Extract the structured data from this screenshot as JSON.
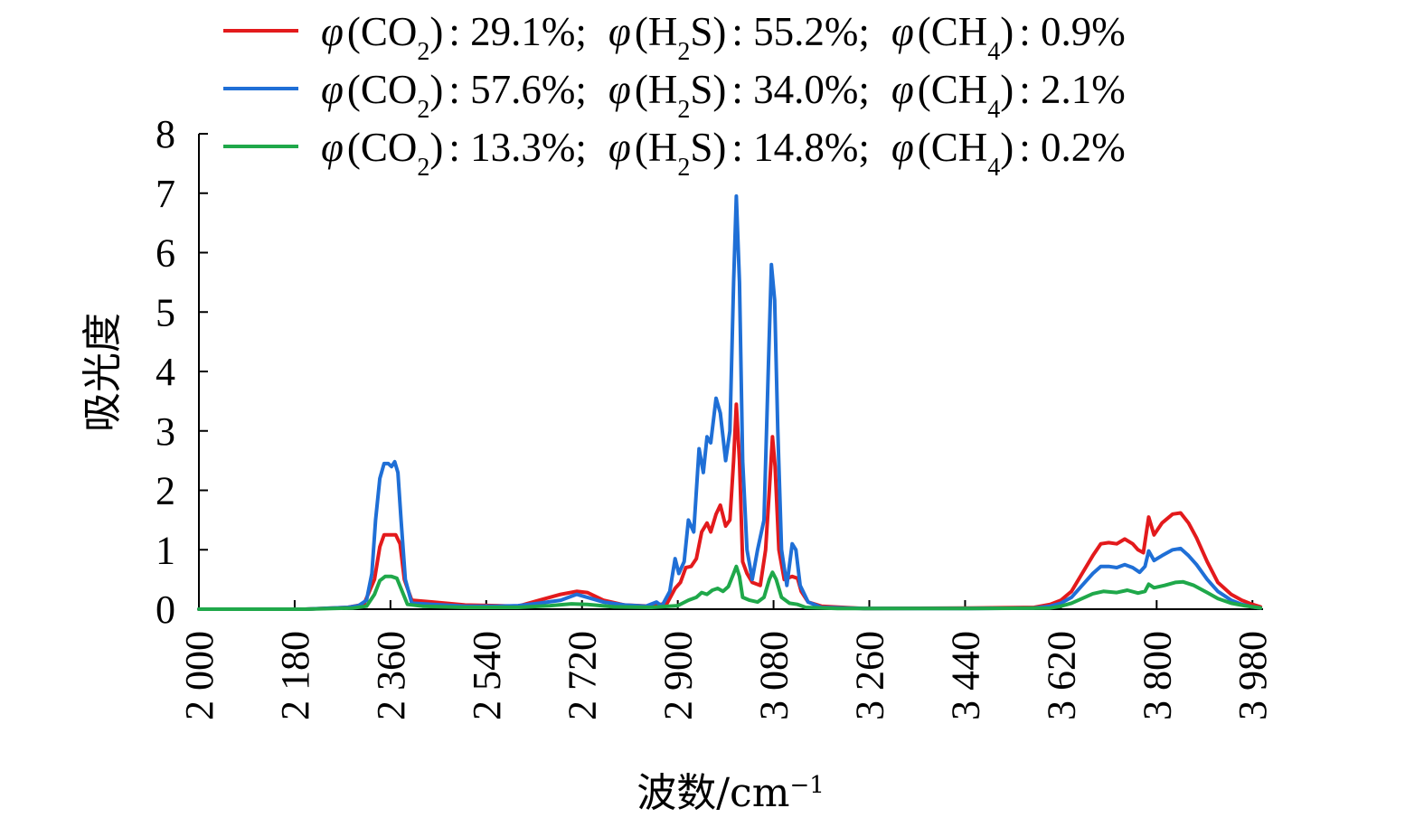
{
  "chart_data": {
    "type": "line",
    "title": "",
    "xlabel": "波数/cm",
    "xlabel_sup": "−1",
    "ylabel": "吸光度",
    "xlim": [
      2000,
      4000
    ],
    "ylim": [
      0,
      8
    ],
    "x_ticks": [
      2000,
      2180,
      2360,
      2540,
      2720,
      2900,
      3080,
      3260,
      3440,
      3620,
      3800,
      3980
    ],
    "x_tick_labels": [
      "2 000",
      "2 180",
      "2 360",
      "2 540",
      "2 720",
      "2 900",
      "3 080",
      "3 260",
      "3 440",
      "3 620",
      "3 800",
      "3 980"
    ],
    "y_ticks": [
      0,
      1,
      2,
      3,
      4,
      5,
      6,
      7,
      8
    ],
    "y_tick_labels": [
      "0",
      "1",
      "2",
      "3",
      "4",
      "5",
      "6",
      "7",
      "8"
    ],
    "grid": false,
    "legend_position": "top-right",
    "series": [
      {
        "name": "φ(CO2): 29.1%; φ(H2S): 55.2%; φ(CH4): 0.9%",
        "legend": {
          "sym1": "φ",
          "gas1": "CO",
          "sub1": "2",
          "val1": ": 29.1%;",
          "sym2": "φ",
          "gas2a": "H",
          "sub2": "2",
          "gas2b": "S",
          "val2": ": 55.2%;",
          "sym3": "φ",
          "gas3": "CH",
          "sub3": "4",
          "val3": ": 0.9%"
        },
        "color": "#e31a1c",
        "points": [
          [
            2000,
            0
          ],
          [
            2200,
            0
          ],
          [
            2280,
            0.03
          ],
          [
            2310,
            0.08
          ],
          [
            2330,
            0.5
          ],
          [
            2340,
            1.05
          ],
          [
            2348,
            1.25
          ],
          [
            2360,
            1.25
          ],
          [
            2370,
            1.25
          ],
          [
            2378,
            1.1
          ],
          [
            2386,
            0.5
          ],
          [
            2400,
            0.15
          ],
          [
            2440,
            0.12
          ],
          [
            2500,
            0.07
          ],
          [
            2560,
            0.06
          ],
          [
            2600,
            0.05
          ],
          [
            2640,
            0.15
          ],
          [
            2680,
            0.25
          ],
          [
            2710,
            0.3
          ],
          [
            2730,
            0.28
          ],
          [
            2760,
            0.15
          ],
          [
            2800,
            0.07
          ],
          [
            2850,
            0.05
          ],
          [
            2880,
            0.1
          ],
          [
            2895,
            0.35
          ],
          [
            2905,
            0.45
          ],
          [
            2915,
            0.7
          ],
          [
            2925,
            0.72
          ],
          [
            2935,
            0.85
          ],
          [
            2945,
            1.3
          ],
          [
            2955,
            1.45
          ],
          [
            2962,
            1.3
          ],
          [
            2972,
            1.6
          ],
          [
            2980,
            1.75
          ],
          [
            2990,
            1.4
          ],
          [
            2998,
            1.5
          ],
          [
            3005,
            2.5
          ],
          [
            3010,
            3.45
          ],
          [
            3016,
            2.5
          ],
          [
            3022,
            0.8
          ],
          [
            3030,
            0.6
          ],
          [
            3040,
            0.45
          ],
          [
            3055,
            0.4
          ],
          [
            3065,
            1.0
          ],
          [
            3072,
            2.0
          ],
          [
            3078,
            2.9
          ],
          [
            3083,
            2.4
          ],
          [
            3090,
            1.0
          ],
          [
            3100,
            0.5
          ],
          [
            3115,
            0.55
          ],
          [
            3125,
            0.52
          ],
          [
            3132,
            0.3
          ],
          [
            3145,
            0.12
          ],
          [
            3170,
            0.05
          ],
          [
            3250,
            0.01
          ],
          [
            3450,
            0.02
          ],
          [
            3570,
            0.03
          ],
          [
            3600,
            0.08
          ],
          [
            3620,
            0.15
          ],
          [
            3640,
            0.3
          ],
          [
            3660,
            0.6
          ],
          [
            3680,
            0.9
          ],
          [
            3695,
            1.1
          ],
          [
            3710,
            1.12
          ],
          [
            3725,
            1.1
          ],
          [
            3740,
            1.18
          ],
          [
            3755,
            1.1
          ],
          [
            3765,
            1.0
          ],
          [
            3775,
            0.95
          ],
          [
            3785,
            1.55
          ],
          [
            3795,
            1.25
          ],
          [
            3810,
            1.45
          ],
          [
            3830,
            1.6
          ],
          [
            3845,
            1.62
          ],
          [
            3860,
            1.45
          ],
          [
            3875,
            1.2
          ],
          [
            3895,
            0.8
          ],
          [
            3915,
            0.45
          ],
          [
            3940,
            0.25
          ],
          [
            3960,
            0.15
          ],
          [
            3980,
            0.08
          ],
          [
            3995,
            0.04
          ]
        ]
      },
      {
        "name": "φ(CO2): 57.6%; φ(H2S): 34.0%; φ(CH4): 2.1%",
        "legend": {
          "sym1": "φ",
          "gas1": "CO",
          "sub1": "2",
          "val1": ": 57.6%;",
          "sym2": "φ",
          "gas2a": "H",
          "sub2": "2",
          "gas2b": "S",
          "val2": ": 34.0%;",
          "sym3": "φ",
          "gas3": "CH",
          "sub3": "4",
          "val3": ": 2.1%"
        },
        "color": "#1f6fd6",
        "points": [
          [
            2000,
            0
          ],
          [
            2200,
            0
          ],
          [
            2280,
            0.03
          ],
          [
            2300,
            0.06
          ],
          [
            2315,
            0.15
          ],
          [
            2325,
            0.6
          ],
          [
            2332,
            1.5
          ],
          [
            2340,
            2.2
          ],
          [
            2348,
            2.45
          ],
          [
            2356,
            2.45
          ],
          [
            2362,
            2.4
          ],
          [
            2368,
            2.48
          ],
          [
            2374,
            2.3
          ],
          [
            2380,
            1.5
          ],
          [
            2388,
            0.5
          ],
          [
            2400,
            0.1
          ],
          [
            2440,
            0.08
          ],
          [
            2500,
            0.05
          ],
          [
            2560,
            0.05
          ],
          [
            2600,
            0.06
          ],
          [
            2640,
            0.1
          ],
          [
            2680,
            0.15
          ],
          [
            2710,
            0.25
          ],
          [
            2730,
            0.2
          ],
          [
            2760,
            0.12
          ],
          [
            2800,
            0.07
          ],
          [
            2840,
            0.05
          ],
          [
            2860,
            0.12
          ],
          [
            2870,
            0.05
          ],
          [
            2885,
            0.3
          ],
          [
            2895,
            0.85
          ],
          [
            2902,
            0.6
          ],
          [
            2912,
            0.8
          ],
          [
            2920,
            1.5
          ],
          [
            2930,
            1.3
          ],
          [
            2940,
            2.7
          ],
          [
            2948,
            2.3
          ],
          [
            2955,
            2.9
          ],
          [
            2962,
            2.8
          ],
          [
            2972,
            3.55
          ],
          [
            2980,
            3.3
          ],
          [
            2990,
            2.5
          ],
          [
            2998,
            3.0
          ],
          [
            3005,
            5.5
          ],
          [
            3010,
            6.95
          ],
          [
            3016,
            5.5
          ],
          [
            3022,
            2.5
          ],
          [
            3030,
            1.0
          ],
          [
            3040,
            0.5
          ],
          [
            3050,
            1.0
          ],
          [
            3062,
            1.5
          ],
          [
            3070,
            4.0
          ],
          [
            3076,
            5.8
          ],
          [
            3082,
            5.2
          ],
          [
            3088,
            3.0
          ],
          [
            3095,
            1.0
          ],
          [
            3105,
            0.4
          ],
          [
            3115,
            1.1
          ],
          [
            3122,
            1.0
          ],
          [
            3130,
            0.4
          ],
          [
            3145,
            0.12
          ],
          [
            3170,
            0.03
          ],
          [
            3250,
            0.01
          ],
          [
            3450,
            0.01
          ],
          [
            3570,
            0.02
          ],
          [
            3600,
            0.05
          ],
          [
            3620,
            0.1
          ],
          [
            3640,
            0.2
          ],
          [
            3660,
            0.4
          ],
          [
            3680,
            0.6
          ],
          [
            3695,
            0.72
          ],
          [
            3710,
            0.72
          ],
          [
            3725,
            0.7
          ],
          [
            3740,
            0.75
          ],
          [
            3755,
            0.7
          ],
          [
            3768,
            0.62
          ],
          [
            3778,
            0.72
          ],
          [
            3785,
            0.98
          ],
          [
            3795,
            0.82
          ],
          [
            3810,
            0.9
          ],
          [
            3830,
            1.0
          ],
          [
            3845,
            1.02
          ],
          [
            3860,
            0.9
          ],
          [
            3875,
            0.75
          ],
          [
            3895,
            0.5
          ],
          [
            3915,
            0.3
          ],
          [
            3940,
            0.15
          ],
          [
            3960,
            0.08
          ],
          [
            3980,
            0.04
          ],
          [
            3995,
            0.02
          ]
        ]
      },
      {
        "name": "φ(CO2): 13.3%; φ(H2S): 14.8%; φ(CH4): 0.2%",
        "legend": {
          "sym1": "φ",
          "gas1": "CO",
          "sub1": "2",
          "val1": ": 13.3%;",
          "sym2": "φ",
          "gas2a": "H",
          "sub2": "2",
          "gas2b": "S",
          "val2": ": 14.8%;",
          "sym3": "φ",
          "gas3": "CH",
          "sub3": "4",
          "val3": ": 0.2%"
        },
        "color": "#1fa84a",
        "points": [
          [
            2000,
            0
          ],
          [
            2200,
            0
          ],
          [
            2290,
            0.02
          ],
          [
            2315,
            0.05
          ],
          [
            2330,
            0.25
          ],
          [
            2340,
            0.48
          ],
          [
            2350,
            0.55
          ],
          [
            2362,
            0.55
          ],
          [
            2372,
            0.52
          ],
          [
            2382,
            0.3
          ],
          [
            2392,
            0.08
          ],
          [
            2420,
            0.05
          ],
          [
            2500,
            0.03
          ],
          [
            2600,
            0.03
          ],
          [
            2660,
            0.06
          ],
          [
            2700,
            0.09
          ],
          [
            2730,
            0.08
          ],
          [
            2780,
            0.04
          ],
          [
            2850,
            0.03
          ],
          [
            2900,
            0.06
          ],
          [
            2920,
            0.15
          ],
          [
            2935,
            0.2
          ],
          [
            2945,
            0.28
          ],
          [
            2955,
            0.25
          ],
          [
            2965,
            0.32
          ],
          [
            2975,
            0.35
          ],
          [
            2985,
            0.3
          ],
          [
            2995,
            0.38
          ],
          [
            3005,
            0.6
          ],
          [
            3010,
            0.72
          ],
          [
            3016,
            0.55
          ],
          [
            3022,
            0.2
          ],
          [
            3035,
            0.15
          ],
          [
            3050,
            0.12
          ],
          [
            3062,
            0.2
          ],
          [
            3072,
            0.5
          ],
          [
            3078,
            0.62
          ],
          [
            3085,
            0.5
          ],
          [
            3095,
            0.2
          ],
          [
            3110,
            0.1
          ],
          [
            3125,
            0.08
          ],
          [
            3140,
            0.03
          ],
          [
            3200,
            0.01
          ],
          [
            3450,
            0.01
          ],
          [
            3600,
            0.02
          ],
          [
            3620,
            0.05
          ],
          [
            3640,
            0.1
          ],
          [
            3660,
            0.18
          ],
          [
            3680,
            0.26
          ],
          [
            3700,
            0.3
          ],
          [
            3725,
            0.28
          ],
          [
            3745,
            0.32
          ],
          [
            3765,
            0.27
          ],
          [
            3778,
            0.3
          ],
          [
            3785,
            0.42
          ],
          [
            3795,
            0.36
          ],
          [
            3815,
            0.4
          ],
          [
            3835,
            0.45
          ],
          [
            3850,
            0.46
          ],
          [
            3870,
            0.4
          ],
          [
            3895,
            0.28
          ],
          [
            3915,
            0.18
          ],
          [
            3940,
            0.1
          ],
          [
            3965,
            0.06
          ],
          [
            3995,
            0.02
          ]
        ]
      }
    ]
  }
}
